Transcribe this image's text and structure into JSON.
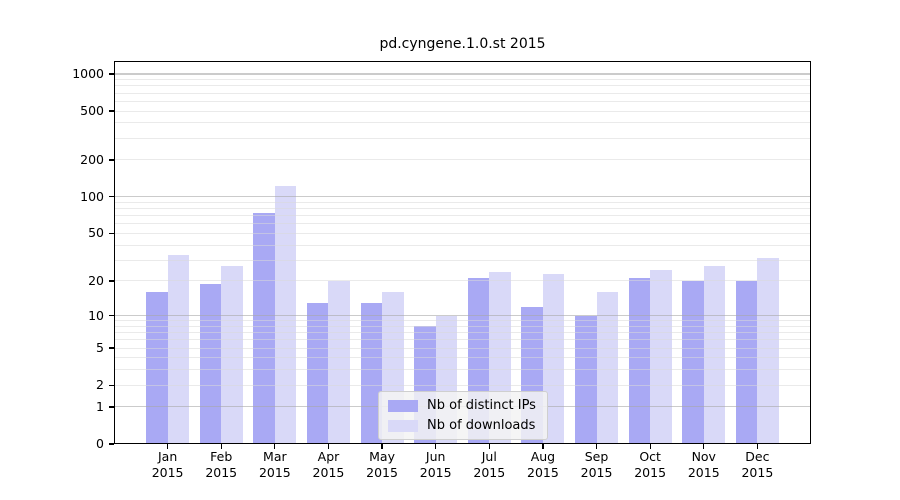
{
  "chart_data": {
    "type": "bar",
    "title": "pd.cyngene.1.0.st 2015",
    "categories": [
      "Jan",
      "Feb",
      "Mar",
      "Apr",
      "May",
      "Jun",
      "Jul",
      "Aug",
      "Sep",
      "Oct",
      "Nov",
      "Dec"
    ],
    "x_year_label": "2015",
    "series": [
      {
        "name": "Nb of distinct IPs",
        "color": "#a9a9f4",
        "values": [
          16,
          19,
          73,
          13,
          13,
          8,
          21,
          12,
          10,
          21,
          20,
          20
        ]
      },
      {
        "name": "Nb of downloads",
        "color": "#d9d9f8",
        "values": [
          33,
          27,
          123,
          20,
          16,
          10,
          24,
          23,
          16,
          25,
          27,
          31
        ]
      }
    ],
    "y_axis": {
      "scale": "log1p",
      "ticks": [
        0,
        1,
        2,
        5,
        10,
        20,
        50,
        100,
        200,
        500,
        1000
      ],
      "grid_major": [
        1,
        10,
        100,
        1000
      ],
      "grid_minor_subs": [
        2,
        3,
        4,
        5,
        6,
        7,
        8,
        9
      ],
      "grid_minor_decades": [
        1,
        10,
        100
      ]
    },
    "legend_position": "lower center",
    "grid": true
  },
  "colors": {
    "bar_distinct_ips": "#a9a9f4",
    "bar_downloads": "#d9d9f8",
    "grid_major": "rgba(168,168,168,0.60)",
    "grid_minor": "rgba(216,216,216,0.55)",
    "axis": "#000000",
    "text": "#000000",
    "legend_bg": "#f3f3f3",
    "legend_border": "#cfcfcf"
  }
}
